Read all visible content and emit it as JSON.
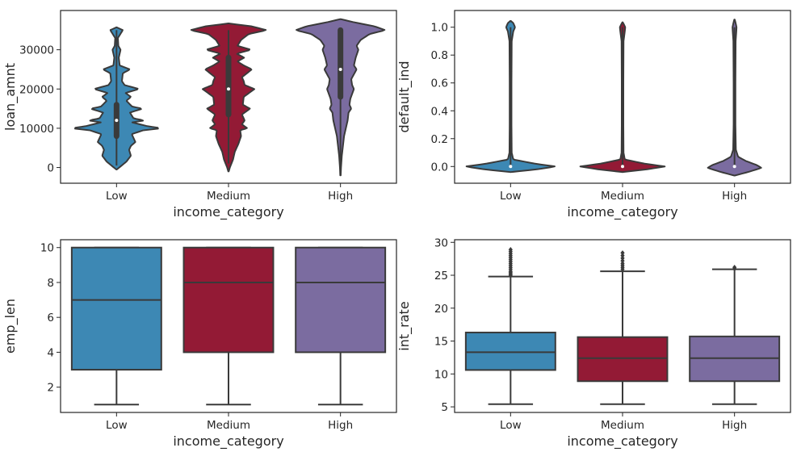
{
  "colors": {
    "Low": "#3d88b4",
    "Medium": "#931a35",
    "High": "#7b6ca0"
  },
  "chart_data": [
    {
      "type": "violin",
      "xlabel": "income_category",
      "ylabel": "loan_amnt",
      "categories": [
        "Low",
        "Medium",
        "High"
      ],
      "ylim": [
        -4000,
        40000
      ],
      "yticks": [
        0,
        10000,
        20000,
        30000
      ],
      "yticklabels": [
        "0",
        "10000",
        "20000",
        "30000"
      ],
      "series": [
        {
          "category": "Low",
          "median": 12000,
          "q1": 8000,
          "q3": 16000,
          "min": 500,
          "max": 35000,
          "profile": [
            [
              -500,
              0.005
            ],
            [
              0,
              0.06
            ],
            [
              1500,
              0.22
            ],
            [
              3000,
              0.32
            ],
            [
              4500,
              0.28
            ],
            [
              5500,
              0.32
            ],
            [
              6500,
              0.42
            ],
            [
              7500,
              0.38
            ],
            [
              8500,
              0.34
            ],
            [
              9500,
              0.6
            ],
            [
              10000,
              1.0
            ],
            [
              10500,
              0.7
            ],
            [
              11500,
              0.35
            ],
            [
              12000,
              0.62
            ],
            [
              12500,
              0.38
            ],
            [
              14000,
              0.3
            ],
            [
              15000,
              0.58
            ],
            [
              15500,
              0.35
            ],
            [
              17000,
              0.22
            ],
            [
              18000,
              0.32
            ],
            [
              19000,
              0.2
            ],
            [
              20000,
              0.5
            ],
            [
              21000,
              0.18
            ],
            [
              22000,
              0.12
            ],
            [
              24000,
              0.14
            ],
            [
              25000,
              0.3
            ],
            [
              26000,
              0.07
            ],
            [
              28000,
              0.05
            ],
            [
              30000,
              0.09
            ],
            [
              31000,
              0.04
            ],
            [
              33000,
              0.03
            ],
            [
              35000,
              0.14
            ],
            [
              35700,
              0.005
            ]
          ]
        },
        {
          "category": "Medium",
          "median": 20000,
          "q1": 13500,
          "q3": 28000,
          "min": 1000,
          "max": 35000,
          "profile": [
            [
              -1000,
              0.005
            ],
            [
              0,
              0.03
            ],
            [
              2000,
              0.1
            ],
            [
              4000,
              0.14
            ],
            [
              6000,
              0.22
            ],
            [
              8000,
              0.28
            ],
            [
              9500,
              0.26
            ],
            [
              10000,
              0.42
            ],
            [
              11000,
              0.3
            ],
            [
              12000,
              0.36
            ],
            [
              13500,
              0.3
            ],
            [
              15000,
              0.48
            ],
            [
              16000,
              0.32
            ],
            [
              18000,
              0.34
            ],
            [
              20000,
              0.58
            ],
            [
              21000,
              0.36
            ],
            [
              22000,
              0.34
            ],
            [
              23000,
              0.3
            ],
            [
              25000,
              0.52
            ],
            [
              26000,
              0.34
            ],
            [
              27000,
              0.2
            ],
            [
              28000,
              0.35
            ],
            [
              29000,
              0.18
            ],
            [
              30000,
              0.5
            ],
            [
              31000,
              0.2
            ],
            [
              32500,
              0.28
            ],
            [
              34000,
              0.45
            ],
            [
              35000,
              0.85
            ],
            [
              36000,
              0.5
            ],
            [
              36700,
              0.005
            ]
          ]
        },
        {
          "category": "High",
          "median": 25000,
          "q1": 18000,
          "q3": 35000,
          "min": 1000,
          "max": 35000,
          "profile": [
            [
              -2000,
              0.005
            ],
            [
              0,
              0.012
            ],
            [
              3000,
              0.03
            ],
            [
              6000,
              0.06
            ],
            [
              8000,
              0.08
            ],
            [
              10000,
              0.12
            ],
            [
              12000,
              0.16
            ],
            [
              14000,
              0.18
            ],
            [
              15000,
              0.24
            ],
            [
              16000,
              0.2
            ],
            [
              17500,
              0.22
            ],
            [
              20000,
              0.3
            ],
            [
              21000,
              0.26
            ],
            [
              22500,
              0.24
            ],
            [
              25000,
              0.36
            ],
            [
              26000,
              0.3
            ],
            [
              28000,
              0.34
            ],
            [
              30000,
              0.4
            ],
            [
              31000,
              0.36
            ],
            [
              32500,
              0.45
            ],
            [
              34000,
              0.65
            ],
            [
              35000,
              1.0
            ],
            [
              36000,
              0.75
            ],
            [
              37000,
              0.3
            ],
            [
              37800,
              0.005
            ]
          ]
        }
      ]
    },
    {
      "type": "violin",
      "xlabel": "income_category",
      "ylabel": "default_ind",
      "categories": [
        "Low",
        "Medium",
        "High"
      ],
      "ylim": [
        -0.12,
        1.12
      ],
      "yticks": [
        0.0,
        0.2,
        0.4,
        0.6,
        0.8,
        1.0
      ],
      "yticklabels": [
        "0.0",
        "0.2",
        "0.4",
        "0.6",
        "0.8",
        "1.0"
      ],
      "series": [
        {
          "category": "Low",
          "median": 0,
          "q1": 0,
          "q3": 0,
          "min": 0,
          "max": 1,
          "profile": [
            [
              -0.04,
              0.005
            ],
            [
              -0.02,
              0.6
            ],
            [
              0,
              1.0
            ],
            [
              0.02,
              0.55
            ],
            [
              0.05,
              0.06
            ],
            [
              0.1,
              0.025
            ],
            [
              0.3,
              0.02
            ],
            [
              0.6,
              0.02
            ],
            [
              0.9,
              0.025
            ],
            [
              0.97,
              0.06
            ],
            [
              1.0,
              0.1
            ],
            [
              1.03,
              0.06
            ],
            [
              1.045,
              0.005
            ]
          ]
        },
        {
          "category": "Medium",
          "median": 0,
          "q1": 0,
          "q3": 0,
          "min": 0,
          "max": 1,
          "profile": [
            [
              -0.04,
              0.005
            ],
            [
              -0.02,
              0.55
            ],
            [
              0,
              0.95
            ],
            [
              0.02,
              0.5
            ],
            [
              0.05,
              0.05
            ],
            [
              0.1,
              0.022
            ],
            [
              0.3,
              0.018
            ],
            [
              0.6,
              0.018
            ],
            [
              0.9,
              0.022
            ],
            [
              0.97,
              0.05
            ],
            [
              1.0,
              0.06
            ],
            [
              1.02,
              0.03
            ],
            [
              1.035,
              0.005
            ]
          ]
        },
        {
          "category": "High",
          "median": 0,
          "q1": 0,
          "q3": 0,
          "min": 0,
          "max": 1,
          "profile": [
            [
              -0.065,
              0.005
            ],
            [
              -0.04,
              0.3
            ],
            [
              -0.01,
              0.6
            ],
            [
              0.01,
              0.5
            ],
            [
              0.04,
              0.25
            ],
            [
              0.07,
              0.08
            ],
            [
              0.12,
              0.03
            ],
            [
              0.3,
              0.02
            ],
            [
              0.6,
              0.02
            ],
            [
              0.9,
              0.025
            ],
            [
              0.97,
              0.04
            ],
            [
              1.0,
              0.045
            ],
            [
              1.03,
              0.025
            ],
            [
              1.055,
              0.005
            ]
          ]
        }
      ]
    },
    {
      "type": "box",
      "xlabel": "income_category",
      "ylabel": "emp_len",
      "categories": [
        "Low",
        "Medium",
        "High"
      ],
      "ylim": [
        0.55,
        10.45
      ],
      "yticks": [
        2,
        4,
        6,
        8,
        10
      ],
      "yticklabels": [
        "2",
        "4",
        "6",
        "8",
        "10"
      ],
      "series": [
        {
          "category": "Low",
          "min": 1,
          "q1": 3,
          "median": 7,
          "q3": 10,
          "max": 10,
          "outliers": []
        },
        {
          "category": "Medium",
          "min": 1,
          "q1": 4,
          "median": 8,
          "q3": 10,
          "max": 10,
          "outliers": []
        },
        {
          "category": "High",
          "min": 1,
          "q1": 4,
          "median": 8,
          "q3": 10,
          "max": 10,
          "outliers": []
        }
      ]
    },
    {
      "type": "box",
      "xlabel": "income_category",
      "ylabel": "int_rate",
      "categories": [
        "Low",
        "Medium",
        "High"
      ],
      "ylim": [
        4.15,
        30.4
      ],
      "yticks": [
        5,
        10,
        15,
        20,
        25,
        30
      ],
      "yticklabels": [
        "5",
        "10",
        "15",
        "20",
        "25",
        "30"
      ],
      "series": [
        {
          "category": "Low",
          "min": 5.4,
          "q1": 10.6,
          "median": 13.3,
          "q3": 16.3,
          "max": 24.8,
          "outliers": [
            25.0,
            25.2,
            25.4,
            25.6,
            25.9,
            26.2,
            26.5,
            26.8,
            27.1,
            27.4,
            27.7,
            28.0,
            28.3,
            28.6,
            28.9
          ]
        },
        {
          "category": "Medium",
          "min": 5.4,
          "q1": 8.9,
          "median": 12.4,
          "q3": 15.6,
          "max": 25.6,
          "outliers": [
            25.9,
            26.2,
            26.5,
            26.8,
            27.2,
            27.6,
            28.0,
            28.4
          ]
        },
        {
          "category": "High",
          "min": 5.4,
          "q1": 8.9,
          "median": 12.4,
          "q3": 15.7,
          "max": 25.9,
          "outliers": [
            26.0,
            26.2
          ]
        }
      ]
    }
  ]
}
